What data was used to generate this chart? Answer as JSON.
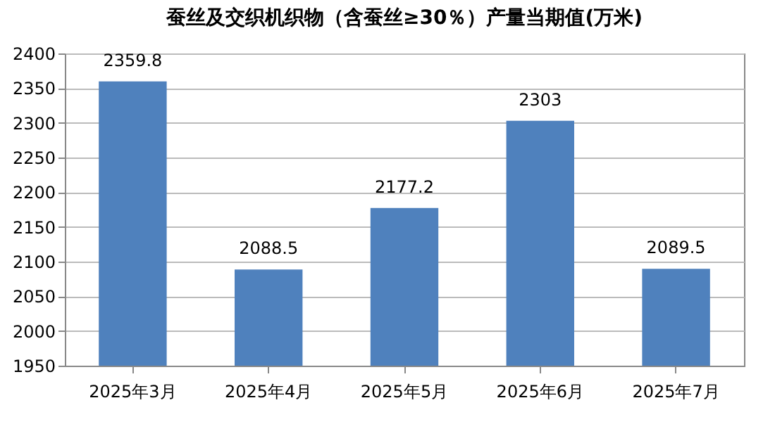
{
  "chart_data": {
    "type": "bar",
    "title": "蚕丝及交织机织物（含蚕丝≥30％）产量当期值(万米)",
    "categories": [
      "2025年3月",
      "2025年4月",
      "2025年5月",
      "2025年6月",
      "2025年7月"
    ],
    "values": [
      2359.8,
      2088.5,
      2177.2,
      2303,
      2089.5
    ],
    "color": "#4f81bd",
    "ylim": [
      1950,
      2400
    ],
    "yticks": [
      1950,
      2000,
      2050,
      2100,
      2150,
      2200,
      2250,
      2300,
      2350,
      2400
    ],
    "grid": "y",
    "data_labels": true
  }
}
